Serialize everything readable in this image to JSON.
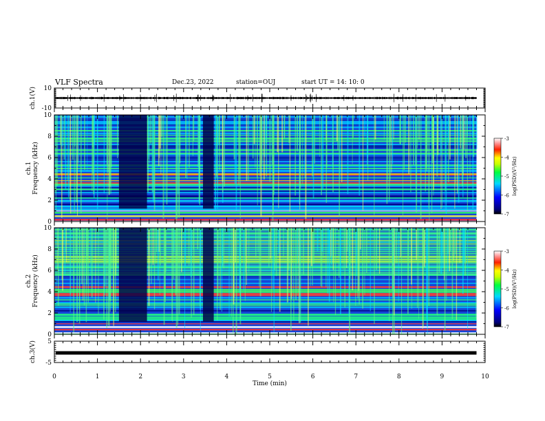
{
  "header": {
    "title": "VLF Spectra",
    "date": "Dec.23, 2022",
    "station": "station=OUJ",
    "start": "start  UT =  14: 10: 0"
  },
  "chart_data": [
    {
      "type": "line",
      "panel": "ch1-waveform",
      "ylabel": "ch.1(V)",
      "ylim": [
        -10,
        10
      ],
      "yticks": [
        "10",
        "-10"
      ],
      "xlim": [
        0,
        10
      ],
      "envelope": {
        "baseline": 0,
        "typical_amplitude": 1.2,
        "peak_amplitude": 4.5
      }
    },
    {
      "type": "heatmap",
      "panel": "ch1-spectrogram",
      "ylabel": "Frequency (kHz)",
      "ylabel_prefix": "ch.1",
      "ylim": [
        0,
        10
      ],
      "yticks": [
        "0",
        "2",
        "4",
        "6",
        "8",
        "10"
      ],
      "xlim": [
        0,
        10
      ],
      "colorbar": {
        "label": "log(PSD)(V²/Hz)",
        "range": [
          -7,
          -3
        ],
        "ticks": [
          "-3",
          "-4",
          "-5",
          "-6",
          "-7"
        ]
      },
      "quiet_intervals_min": [
        [
          1.5,
          2.15
        ],
        [
          3.45,
          3.7
        ]
      ]
    },
    {
      "type": "heatmap",
      "panel": "ch2-spectrogram",
      "ylabel": "Frequency (kHz)",
      "ylabel_prefix": "ch.2",
      "ylim": [
        0,
        10
      ],
      "yticks": [
        "0",
        "2",
        "4",
        "6",
        "8",
        "10"
      ],
      "xlim": [
        0,
        10
      ],
      "colorbar": {
        "label": "log(PSD)(V²/Hz)",
        "range": [
          -7,
          -3
        ],
        "ticks": [
          "-3",
          "-4",
          "-5",
          "-6",
          "-7"
        ]
      },
      "quiet_intervals_min": [
        [
          1.5,
          2.15
        ],
        [
          3.45,
          3.7
        ]
      ]
    },
    {
      "type": "line",
      "panel": "ch3-waveform",
      "ylabel": "ch.3(V)",
      "ylim": [
        -5,
        5
      ],
      "yticks": [
        "5",
        "-5"
      ],
      "xlim": [
        0,
        10
      ],
      "values_constant": -0.5
    }
  ],
  "xaxis": {
    "label": "Time (min)",
    "ticks": [
      "0",
      "1",
      "2",
      "3",
      "4",
      "5",
      "6",
      "7",
      "8",
      "9",
      "10"
    ],
    "data_end": 9.8
  },
  "colors": {
    "frame": "#000000",
    "background": "#ffffff"
  }
}
